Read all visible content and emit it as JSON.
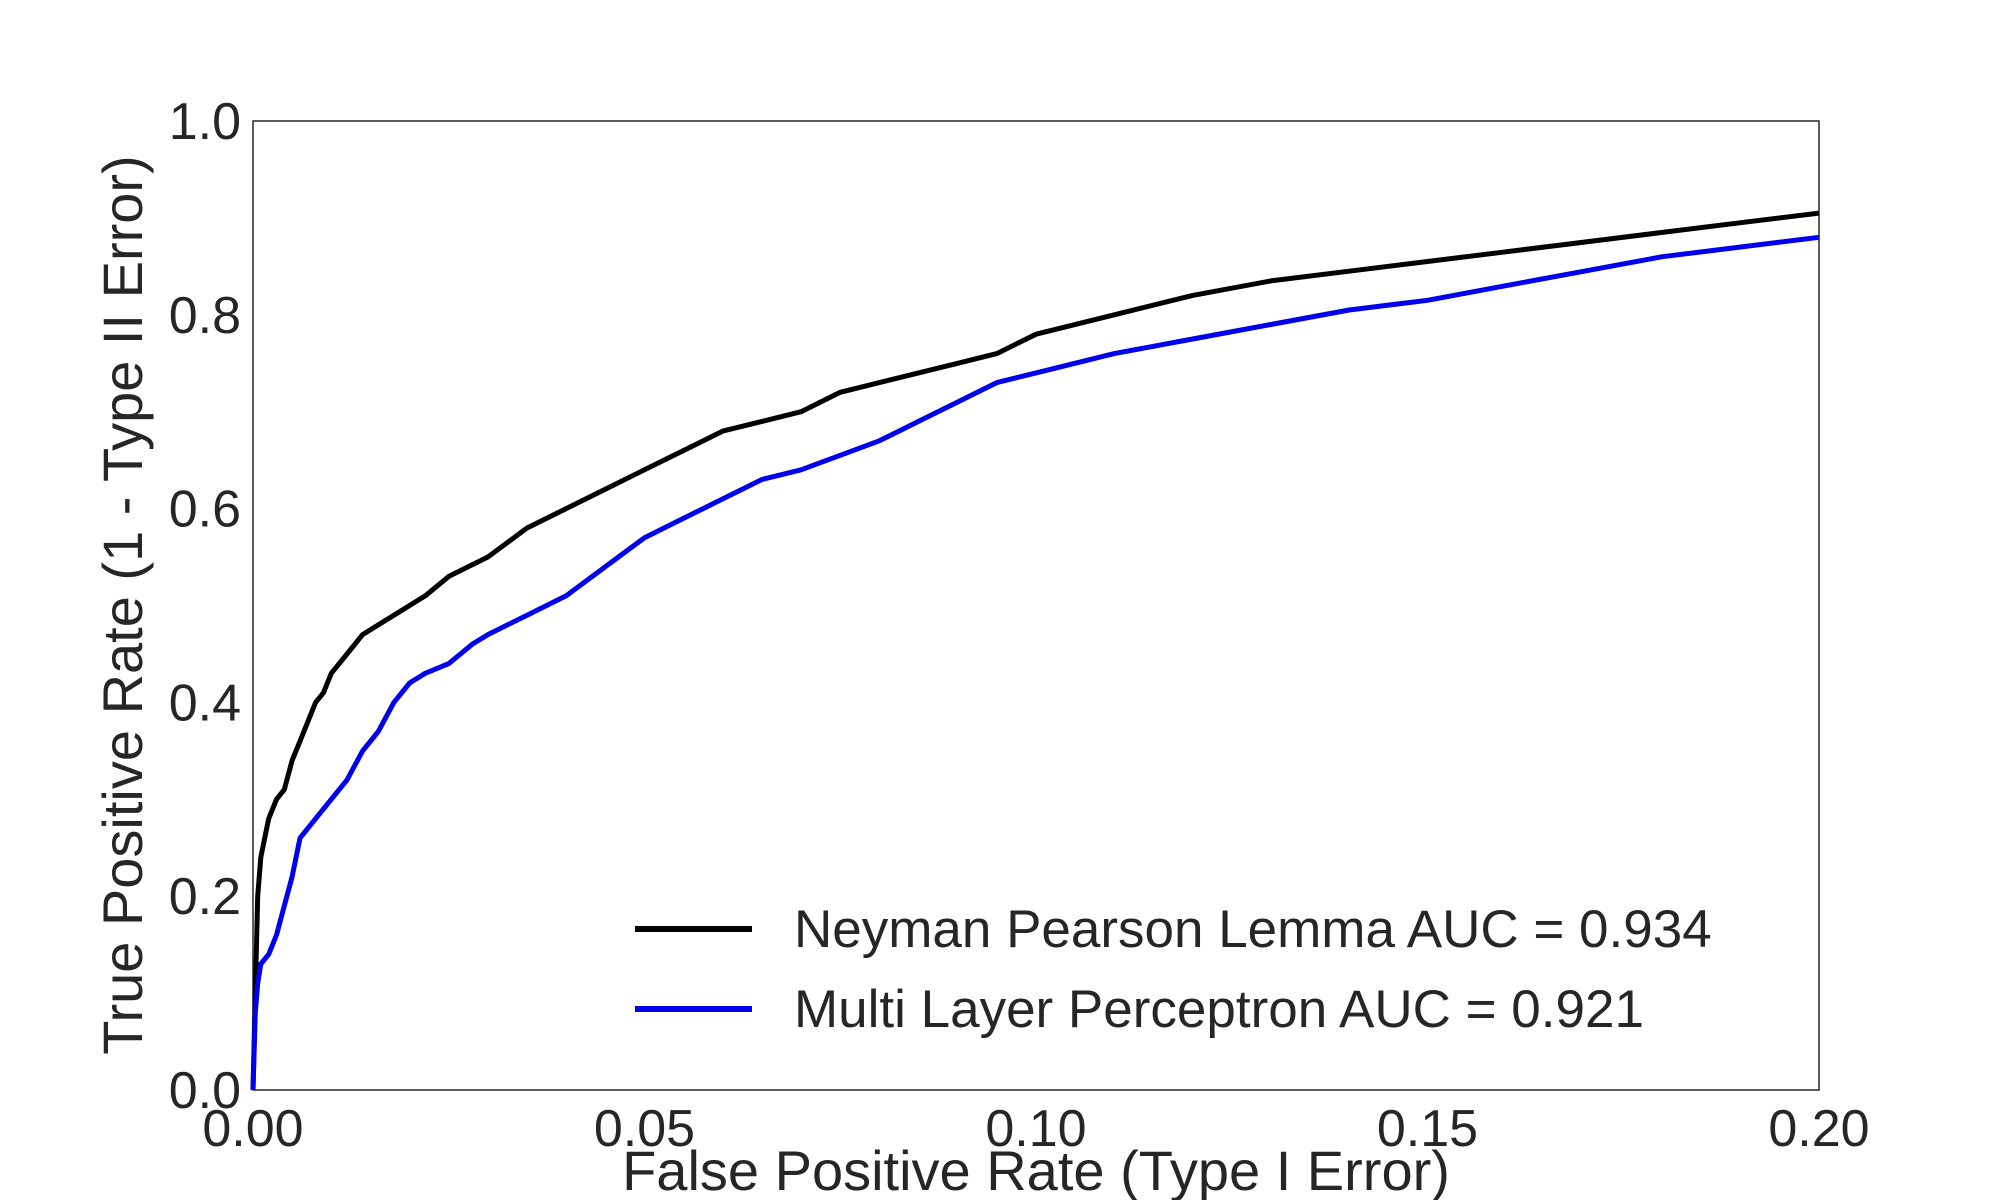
{
  "chart_data": {
    "type": "line",
    "title": "",
    "xlabel": "False Positive Rate (Type I Error)",
    "ylabel": "True Positive Rate (1 - Type II Error)",
    "xlim": [
      0.0,
      0.2
    ],
    "ylim": [
      0.0,
      1.0
    ],
    "xticks": [
      "0.00",
      "0.05",
      "0.10",
      "0.15",
      "0.20"
    ],
    "yticks": [
      "0.0",
      "0.2",
      "0.4",
      "0.6",
      "0.8",
      "1.0"
    ],
    "grid": false,
    "legend_position": "lower-right",
    "series": [
      {
        "name": "Neyman Pearson Lemma AUC = 0.934",
        "color": "#000000",
        "x": [
          0.0,
          0.0003,
          0.0006,
          0.001,
          0.0015,
          0.002,
          0.003,
          0.004,
          0.005,
          0.006,
          0.007,
          0.008,
          0.009,
          0.01,
          0.012,
          0.014,
          0.016,
          0.018,
          0.02,
          0.022,
          0.025,
          0.03,
          0.035,
          0.04,
          0.045,
          0.05,
          0.055,
          0.06,
          0.065,
          0.07,
          0.075,
          0.08,
          0.085,
          0.09,
          0.095,
          0.1,
          0.11,
          0.12,
          0.13,
          0.14,
          0.15,
          0.16,
          0.17,
          0.18,
          0.19,
          0.2
        ],
        "y": [
          0.0,
          0.1,
          0.2,
          0.24,
          0.26,
          0.28,
          0.3,
          0.31,
          0.34,
          0.36,
          0.38,
          0.4,
          0.41,
          0.43,
          0.45,
          0.47,
          0.48,
          0.49,
          0.5,
          0.51,
          0.53,
          0.55,
          0.58,
          0.6,
          0.62,
          0.64,
          0.66,
          0.68,
          0.69,
          0.7,
          0.72,
          0.73,
          0.74,
          0.75,
          0.76,
          0.78,
          0.8,
          0.82,
          0.835,
          0.845,
          0.855,
          0.865,
          0.875,
          0.885,
          0.895,
          0.905
        ]
      },
      {
        "name": "Multi Layer Perceptron AUC = 0.921",
        "color": "#0000ee",
        "x": [
          0.0,
          0.0003,
          0.0006,
          0.001,
          0.002,
          0.003,
          0.004,
          0.005,
          0.006,
          0.008,
          0.01,
          0.012,
          0.014,
          0.016,
          0.018,
          0.02,
          0.022,
          0.025,
          0.028,
          0.03,
          0.035,
          0.04,
          0.045,
          0.05,
          0.055,
          0.06,
          0.065,
          0.07,
          0.075,
          0.08,
          0.085,
          0.09,
          0.095,
          0.1,
          0.11,
          0.12,
          0.13,
          0.14,
          0.15,
          0.16,
          0.17,
          0.18,
          0.19,
          0.2
        ],
        "y": [
          0.0,
          0.08,
          0.11,
          0.13,
          0.14,
          0.16,
          0.19,
          0.22,
          0.26,
          0.28,
          0.3,
          0.32,
          0.35,
          0.37,
          0.4,
          0.42,
          0.43,
          0.44,
          0.46,
          0.47,
          0.49,
          0.51,
          0.54,
          0.57,
          0.59,
          0.61,
          0.63,
          0.64,
          0.655,
          0.67,
          0.69,
          0.71,
          0.73,
          0.74,
          0.76,
          0.775,
          0.79,
          0.805,
          0.815,
          0.83,
          0.845,
          0.86,
          0.87,
          0.88
        ]
      }
    ]
  }
}
